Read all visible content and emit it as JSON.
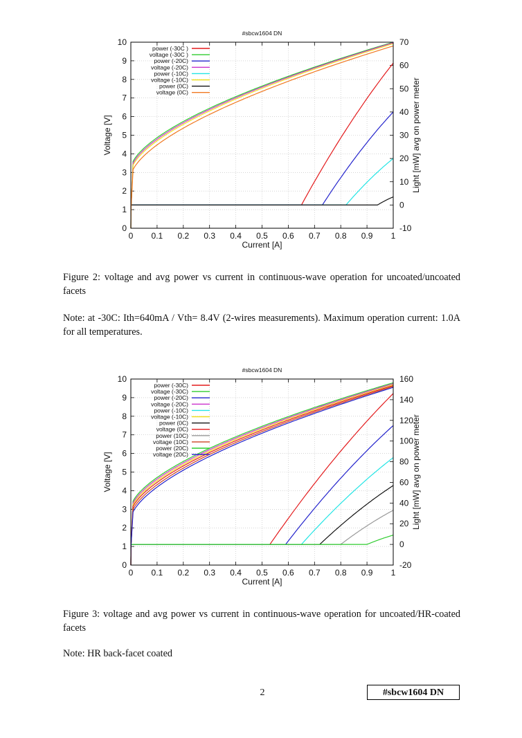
{
  "figure2": {
    "caption": "Figure 2:  voltage and avg power vs current in continuous-wave operation for uncoated/uncoated facets",
    "note": "Note: at -30C: Ith=640mA / Vth= 8.4V (2-wires measurements). Maximum operation current: 1.0A for all temperatures."
  },
  "figure3": {
    "caption": "Figure 3:  voltage and avg power vs current in continuous-wave operation for uncoated/HR-coated facets",
    "note": "Note: HR back-facet coated"
  },
  "footer": {
    "page_number": "2",
    "tag": "#sbcw1604 DN"
  },
  "chart_data": [
    {
      "type": "line",
      "title": "#sbcw1604 DN",
      "xlabel": "Current [A]",
      "ylabel": "Voltage [V]",
      "y2label": "Light [mW] avg on power meter",
      "xlim": [
        0,
        1
      ],
      "ylim": [
        0,
        10
      ],
      "y2lim": [
        -10,
        70
      ],
      "xticks": [
        "0",
        "0.1",
        "0.2",
        "0.3",
        "0.4",
        "0.5",
        "0.6",
        "0.7",
        "0.8",
        "0.9",
        "1"
      ],
      "yticks": [
        "0",
        "1",
        "2",
        "3",
        "4",
        "5",
        "6",
        "7",
        "8",
        "9",
        "10"
      ],
      "y2ticks": [
        "-10",
        "0",
        "10",
        "20",
        "30",
        "40",
        "50",
        "60",
        "70"
      ],
      "grid": true,
      "legend_position": "top-left",
      "series": [
        {
          "name": "power (-30C )",
          "kind": "power",
          "color": "#e31a1c",
          "axis": "y2",
          "threshold": 0.65,
          "end": 61
        },
        {
          "name": "voltage (-30C )",
          "kind": "voltage",
          "color": "#2ecc2e",
          "axis": "y",
          "v0": 3.25,
          "v1": 10.0
        },
        {
          "name": "power (-20C)",
          "kind": "power",
          "color": "#2222cc",
          "axis": "y2",
          "threshold": 0.73,
          "end": 40
        },
        {
          "name": "voltage (-20C)",
          "kind": "voltage",
          "color": "#cc33cc",
          "axis": "y",
          "v0": 3.15,
          "v1": 9.97
        },
        {
          "name": "power (-10C)",
          "kind": "power",
          "color": "#22e5e5",
          "axis": "y2",
          "threshold": 0.82,
          "end": 20
        },
        {
          "name": "voltage (-10C)",
          "kind": "voltage",
          "color": "#f0e020",
          "axis": "y",
          "v0": 3.05,
          "v1": 9.92
        },
        {
          "name": "power (0C)",
          "kind": "power",
          "color": "#111111",
          "axis": "y2",
          "threshold": 0.94,
          "end": 3.5
        },
        {
          "name": "voltage (0C)",
          "kind": "voltage",
          "color": "#f07820",
          "axis": "y",
          "v0": 2.8,
          "v1": 9.8
        }
      ]
    },
    {
      "type": "line",
      "title": "#sbcw1604 DN",
      "xlabel": "Current [A]",
      "ylabel": "Voltage [V]",
      "y2label": "Light [mW] avg on power meter",
      "xlim": [
        0,
        1
      ],
      "ylim": [
        0,
        10
      ],
      "y2lim": [
        -20,
        160
      ],
      "xticks": [
        "0",
        "0.1",
        "0.2",
        "0.3",
        "0.4",
        "0.5",
        "0.6",
        "0.7",
        "0.8",
        "0.9",
        "1"
      ],
      "yticks": [
        "0",
        "1",
        "2",
        "3",
        "4",
        "5",
        "6",
        "7",
        "8",
        "9",
        "10"
      ],
      "y2ticks": [
        "-20",
        "0",
        "20",
        "40",
        "60",
        "80",
        "100",
        "120",
        "140",
        "160"
      ],
      "grid": true,
      "legend_position": "top-left",
      "series": [
        {
          "name": "power (-30C)",
          "kind": "power",
          "color": "#e31a1c",
          "axis": "y2",
          "threshold": 0.53,
          "end": 146
        },
        {
          "name": "voltage (-30C)",
          "kind": "voltage",
          "color": "#2ecc2e",
          "axis": "y",
          "v0": 3.1,
          "v1": 9.8
        },
        {
          "name": "power (-20C)",
          "kind": "power",
          "color": "#2222cc",
          "axis": "y2",
          "threshold": 0.59,
          "end": 115
        },
        {
          "name": "voltage (-20C)",
          "kind": "voltage",
          "color": "#cc33cc",
          "axis": "y",
          "v0": 3.0,
          "v1": 9.75
        },
        {
          "name": "power (-10C)",
          "kind": "power",
          "color": "#22e5e5",
          "axis": "y2",
          "threshold": 0.65,
          "end": 84
        },
        {
          "name": "voltage (-10C)",
          "kind": "voltage",
          "color": "#f0e020",
          "axis": "y",
          "v0": 2.9,
          "v1": 9.7
        },
        {
          "name": "power (0C)",
          "kind": "power",
          "color": "#111111",
          "axis": "y2",
          "threshold": 0.72,
          "end": 57
        },
        {
          "name": "voltage (0C)",
          "kind": "voltage",
          "color": "#e31a1c",
          "axis": "y",
          "v0": 2.8,
          "v1": 9.65
        },
        {
          "name": "power (10C)",
          "kind": "power",
          "color": "#999999",
          "axis": "y2",
          "threshold": 0.8,
          "end": 33
        },
        {
          "name": "voltage (10C)",
          "kind": "voltage",
          "color": "#cc4422",
          "axis": "y",
          "v0": 2.65,
          "v1": 9.6
        },
        {
          "name": "power (20C)",
          "kind": "power",
          "color": "#2ecc2e",
          "axis": "y2",
          "threshold": 0.9,
          "end": 9
        },
        {
          "name": "voltage (20C)",
          "kind": "voltage",
          "color": "#2222cc",
          "axis": "y",
          "v0": 2.5,
          "v1": 9.55
        }
      ]
    }
  ]
}
